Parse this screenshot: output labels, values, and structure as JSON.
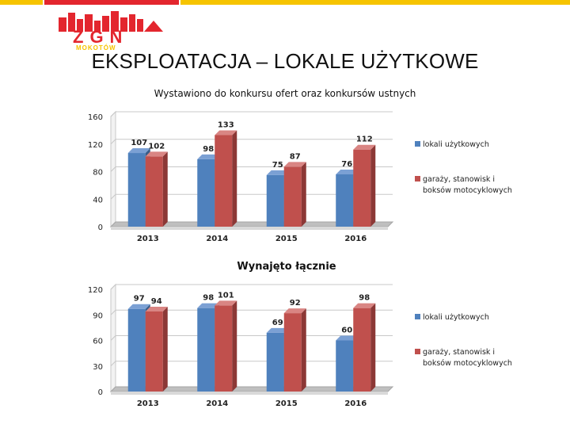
{
  "header": {
    "logo_text": "ZGN",
    "logo_subtext": "MOKOTÓW",
    "title": "EKSPLOATACJA – LOKALE UŻYTKOWE"
  },
  "colors": {
    "series_blue": "#4f81bd",
    "series_red": "#c0504d",
    "accent_yellow": "#f6c400",
    "accent_red": "#e3262e"
  },
  "chart_data": [
    {
      "type": "bar",
      "title": "Wystawiono do konkursu ofert oraz konkursów ustnych",
      "categories": [
        "2013",
        "2014",
        "2015",
        "2016"
      ],
      "series": [
        {
          "name": "lokali użytkowych",
          "values": [
            107,
            98,
            75,
            76
          ]
        },
        {
          "name": "garaży, stanowisk i boksów motocyklowych",
          "values": [
            102,
            133,
            87,
            112
          ]
        }
      ],
      "ylim": [
        0,
        160
      ],
      "yticks": [
        0,
        40,
        80,
        120,
        160
      ],
      "legend": "right",
      "grid": true,
      "style": "3d"
    },
    {
      "type": "bar",
      "title": "Wynajęto łącznie",
      "categories": [
        "2013",
        "2014",
        "2015",
        "2016"
      ],
      "series": [
        {
          "name": "lokali użytkowych",
          "values": [
            97,
            98,
            69,
            60
          ]
        },
        {
          "name": "garaży, stanowisk i boksów motocyklowych",
          "values": [
            94,
            101,
            92,
            98
          ]
        }
      ],
      "ylim": [
        0,
        120
      ],
      "yticks": [
        0,
        30,
        60,
        90,
        120
      ],
      "legend": "right",
      "grid": true,
      "style": "3d"
    }
  ]
}
